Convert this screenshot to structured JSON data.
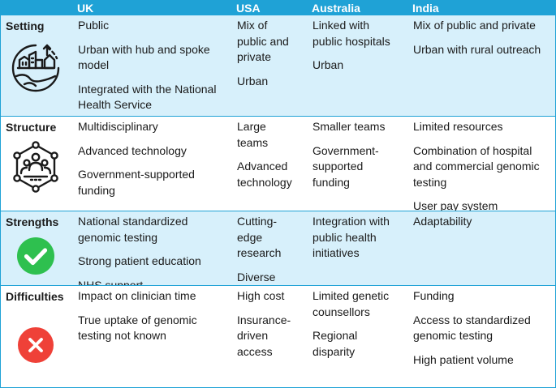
{
  "header": {
    "col0": "",
    "uk": "UK",
    "usa": "USA",
    "australia": "Australia",
    "india": "India"
  },
  "colors": {
    "accent": "#1fa2d6",
    "shade": "#d7f0fb",
    "success": "#2ec04f",
    "danger": "#ef4138"
  },
  "rows": {
    "setting": {
      "label": "Setting",
      "icon": "city-globe-icon",
      "uk": [
        "Public",
        "Urban with hub and spoke model",
        "Integrated with the National Health Service"
      ],
      "usa": [
        "Mix of public and private",
        "Urban"
      ],
      "australia": [
        "Linked with public hospitals",
        "Urban"
      ],
      "india": [
        "Mix of public and private",
        "Urban with rural outreach"
      ]
    },
    "structure": {
      "label": "Structure",
      "icon": "team-network-icon",
      "uk": [
        "Multidisciplinary",
        "Advanced technology",
        "Government-supported funding"
      ],
      "usa": [
        "Large teams",
        "Advanced technology"
      ],
      "australia": [
        "Smaller teams",
        "Government-supported funding"
      ],
      "india": [
        "Limited resources",
        "Combination of hospital and commercial genomic testing",
        "User pay system"
      ]
    },
    "strengths": {
      "label": "Strengths",
      "icon": "check-circle-icon",
      "uk": [
        "National standardized genomic testing",
        "Strong patient education",
        "NHS support"
      ],
      "usa": [
        "Cutting-edge research",
        "Diverse funding"
      ],
      "australia": [
        "Integration with public health initiatives"
      ],
      "india": [
        "Adaptability"
      ]
    },
    "difficulties": {
      "label": "Difficulties",
      "icon": "x-circle-icon",
      "uk": [
        "Impact on clinician time",
        "True uptake of genomic testing not known"
      ],
      "usa": [
        "High cost",
        "Insurance-driven access"
      ],
      "australia": [
        "Limited genetic counsellors",
        "Regional disparity"
      ],
      "india": [
        "Funding",
        "Access to standardized genomic testing",
        "High patient volume"
      ]
    }
  }
}
